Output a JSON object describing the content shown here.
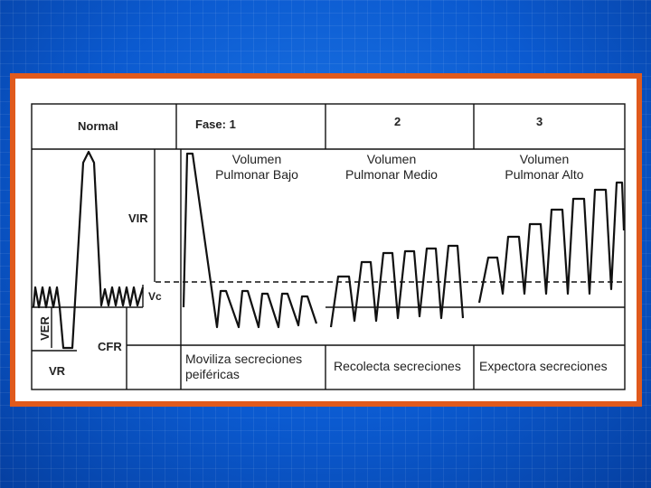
{
  "header": {
    "normal": "Normal",
    "phase1": "Fase: 1",
    "phase2": "2",
    "phase3": "3"
  },
  "volumes": {
    "low_line1": "Volumen",
    "low_line2": "Pulmonar Bajo",
    "mid_line1": "Volumen",
    "mid_line2": "Pulmonar Medio",
    "high_line1": "Volumen",
    "high_line2": "Pulmonar Alto"
  },
  "axis_labels": {
    "vir": "VIR",
    "vc": "Vc",
    "ver": "VER",
    "cfr": "CFR",
    "vr": "VR"
  },
  "actions": {
    "phase1_line1": "Moviliza secreciones",
    "phase1_line2": "peiféricas",
    "phase2": "Recolecta  secreciones",
    "phase3": "Expectora  secreciones"
  },
  "colors": {
    "background": "#0a58c8",
    "frame": "#e05a1c",
    "panel": "#ffffff",
    "ink": "#111111"
  }
}
